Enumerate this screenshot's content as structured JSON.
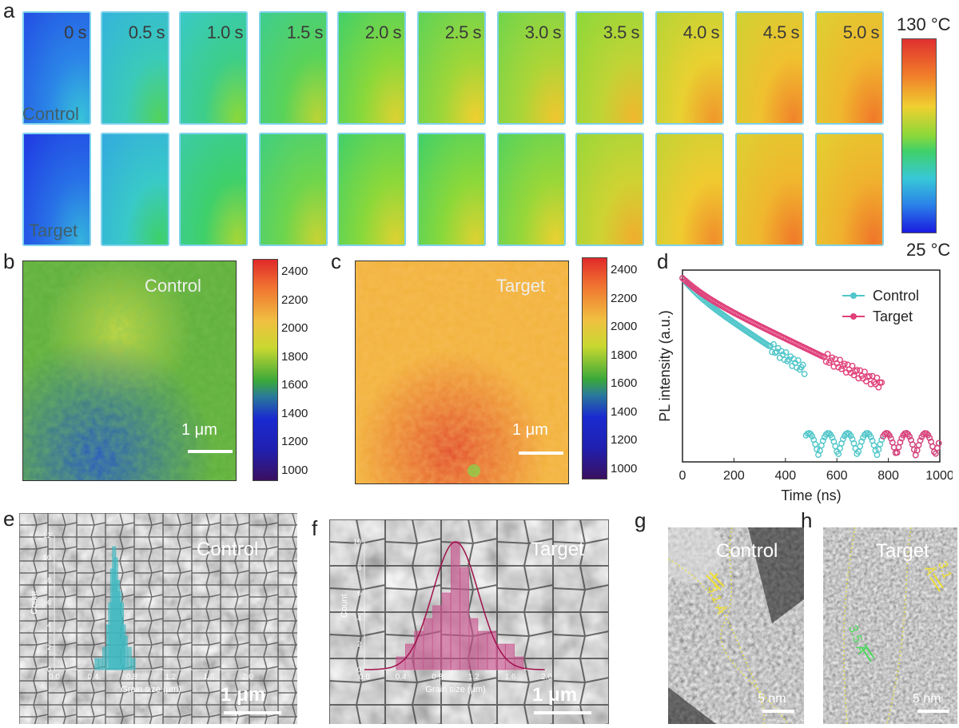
{
  "panel_labels": {
    "a": "a",
    "b": "b",
    "c": "c",
    "d": "d",
    "e": "e",
    "f": "f",
    "g": "g",
    "h": "h"
  },
  "panel_a": {
    "times": [
      "0 s",
      "0.5 s",
      "1.0 s",
      "1.5 s",
      "2.0 s",
      "2.5 s",
      "3.0 s",
      "3.5 s",
      "4.0 s",
      "4.5 s",
      "5.0 s"
    ],
    "row_labels": {
      "control": "Control",
      "target": "Target"
    },
    "colorbar": {
      "max": "130 °C",
      "min": "25 °C"
    },
    "control_level": [
      0.15,
      0.32,
      0.38,
      0.45,
      0.5,
      0.53,
      0.55,
      0.58,
      0.64,
      0.68,
      0.7
    ],
    "target_level": [
      0.12,
      0.3,
      0.42,
      0.47,
      0.5,
      0.5,
      0.52,
      0.6,
      0.66,
      0.7,
      0.71
    ]
  },
  "panel_b": {
    "label": "Control",
    "scale": "1 μm"
  },
  "panel_c": {
    "label": "Target",
    "scale": "1 μm"
  },
  "map_colorbar": {
    "ticks": [
      "2400",
      "2200",
      "2000",
      "1800",
      "1600",
      "1400",
      "1200",
      "1000"
    ]
  },
  "chart_data": [
    {
      "panel": "d",
      "type": "scatter",
      "xlabel": "Time (ns)",
      "ylabel": "PL intensity (a.u.)",
      "xlim": [
        0,
        1000
      ],
      "xticks": [
        "0",
        "200",
        "400",
        "600",
        "800",
        "1000"
      ],
      "series": [
        {
          "name": "Control",
          "color": "#4fc6c9",
          "tau": 190,
          "floor_at": 480
        },
        {
          "name": "Target",
          "color": "#e0407a",
          "tau": 260,
          "floor_at": 780
        }
      ]
    },
    {
      "panel": "e",
      "type": "bar",
      "xlabel": "Grain size (μm)",
      "ylabel": "Count",
      "xlim": [
        0,
        2.0
      ],
      "ylim": [
        0,
        12
      ],
      "xticks": [
        "0.0",
        "0.4",
        "0.8",
        "1.2",
        "1.6",
        "2.0"
      ],
      "yticks": [
        "0",
        "2",
        "4",
        "6",
        "8",
        "10",
        "12"
      ],
      "color": "#3fb8c0",
      "x": [
        0.44,
        0.48,
        0.52,
        0.56,
        0.58,
        0.6,
        0.62,
        0.64,
        0.66,
        0.68,
        0.7,
        0.72,
        0.74,
        0.78,
        0.82
      ],
      "values": [
        1,
        1,
        2,
        4,
        6,
        9,
        11,
        10,
        8,
        7,
        6,
        4,
        3,
        2,
        1
      ]
    },
    {
      "panel": "f",
      "type": "bar",
      "xlabel": "Grain size (μm)",
      "ylabel": "Count",
      "xlim": [
        0,
        2.0
      ],
      "ylim": [
        0,
        10
      ],
      "xticks": [
        "0.0",
        "0.4",
        "0.8",
        "1.2",
        "1.6",
        "2.0"
      ],
      "yticks": [
        "0",
        "2",
        "4",
        "6",
        "8",
        "10"
      ],
      "color": "#c9558f",
      "x": [
        0.4,
        0.5,
        0.6,
        0.7,
        0.8,
        0.9,
        1.0,
        1.1,
        1.2,
        1.3,
        1.4,
        1.5,
        1.6,
        1.7
      ],
      "values": [
        1,
        2,
        3,
        4,
        5,
        6,
        10,
        8,
        4,
        3,
        3,
        2,
        2,
        1
      ],
      "fit_mean": 1.0,
      "fit_sd": 0.25,
      "fit_peak": 10
    }
  ],
  "panel_e": {
    "label": "Control",
    "scale": "1 μm"
  },
  "panel_f": {
    "label": "Target",
    "scale": "1 μm"
  },
  "panel_g": {
    "label": "Control",
    "spacing": "3.1 Å",
    "scale": "5 nm"
  },
  "panel_h": {
    "label": "Target",
    "spacing1": "3.5 Å",
    "spacing2": "3.1 Å",
    "scale": "5 nm"
  }
}
